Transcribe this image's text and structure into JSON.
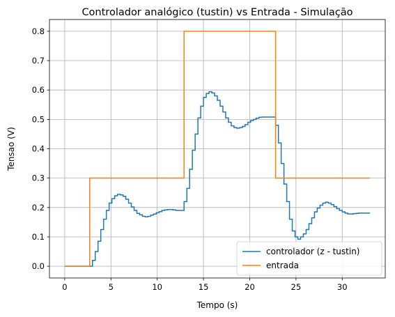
{
  "chart_data": {
    "type": "line",
    "title": "Controlador analógico (tustin) vs Entrada - Simulação",
    "xlabel": "Tempo (s)",
    "ylabel": "Tensao (V)",
    "xlim": [
      -1.65,
      34.65
    ],
    "ylim": [
      -0.04,
      0.84
    ],
    "xticks": [
      0,
      5,
      10,
      15,
      20,
      25,
      30
    ],
    "yticks": [
      0.0,
      0.1,
      0.2,
      0.3,
      0.4,
      0.5,
      0.6,
      0.7,
      0.8
    ],
    "ytick_labels": [
      "0.0",
      "0.1",
      "0.2",
      "0.3",
      "0.4",
      "0.5",
      "0.6",
      "0.7",
      "0.8"
    ],
    "grid": true,
    "legend_position": "lower-right",
    "step": true,
    "series": [
      {
        "name": "controlador (z - tustin)",
        "color": "#1f77b4",
        "x": [
          0,
          2.7,
          3.0,
          3.3,
          3.6,
          3.9,
          4.2,
          4.5,
          4.8,
          5.1,
          5.4,
          5.7,
          6.0,
          6.3,
          6.6,
          6.9,
          7.2,
          7.5,
          7.8,
          8.1,
          8.4,
          8.7,
          9.0,
          9.3,
          9.6,
          9.9,
          10.2,
          10.5,
          10.8,
          11.1,
          11.4,
          11.7,
          12.0,
          12.3,
          12.6,
          12.9,
          13.2,
          13.5,
          13.8,
          14.1,
          14.4,
          14.7,
          15.0,
          15.3,
          15.6,
          15.9,
          16.2,
          16.5,
          16.8,
          17.1,
          17.4,
          17.7,
          18.0,
          18.3,
          18.6,
          18.9,
          19.2,
          19.5,
          19.8,
          20.1,
          20.4,
          20.7,
          21.0,
          21.3,
          21.6,
          21.9,
          22.2,
          22.5,
          22.8,
          23.1,
          23.4,
          23.7,
          24.0,
          24.3,
          24.6,
          24.9,
          25.2,
          25.5,
          25.8,
          26.1,
          26.4,
          26.7,
          27.0,
          27.3,
          27.6,
          27.9,
          28.2,
          28.5,
          28.8,
          29.1,
          29.4,
          29.7,
          30.0,
          30.3,
          30.6,
          30.9,
          31.2,
          31.5,
          31.8,
          32.1,
          32.4,
          32.7,
          33.0
        ],
        "y": [
          0.0,
          0.0,
          0.02,
          0.05,
          0.085,
          0.125,
          0.16,
          0.19,
          0.215,
          0.23,
          0.24,
          0.245,
          0.243,
          0.238,
          0.228,
          0.215,
          0.202,
          0.19,
          0.18,
          0.175,
          0.17,
          0.168,
          0.17,
          0.174,
          0.178,
          0.182,
          0.186,
          0.19,
          0.192,
          0.193,
          0.193,
          0.192,
          0.19,
          0.19,
          0.19,
          0.22,
          0.265,
          0.33,
          0.395,
          0.45,
          0.505,
          0.545,
          0.575,
          0.588,
          0.594,
          0.59,
          0.58,
          0.565,
          0.545,
          0.525,
          0.505,
          0.49,
          0.478,
          0.472,
          0.47,
          0.472,
          0.476,
          0.482,
          0.49,
          0.496,
          0.5,
          0.504,
          0.507,
          0.508,
          0.508,
          0.508,
          0.508,
          0.508,
          0.48,
          0.42,
          0.35,
          0.28,
          0.22,
          0.16,
          0.12,
          0.1,
          0.092,
          0.1,
          0.11,
          0.125,
          0.145,
          0.165,
          0.185,
          0.198,
          0.208,
          0.215,
          0.218,
          0.215,
          0.21,
          0.203,
          0.196,
          0.19,
          0.185,
          0.181,
          0.178,
          0.178,
          0.179,
          0.18,
          0.181,
          0.181,
          0.181,
          0.181,
          0.181
        ]
      },
      {
        "name": "entrada",
        "color": "#ff7f0e",
        "x": [
          0,
          2.7,
          12.9,
          22.8,
          33.0
        ],
        "y": [
          0.0,
          0.3,
          0.8,
          0.3,
          0.3
        ]
      }
    ]
  }
}
